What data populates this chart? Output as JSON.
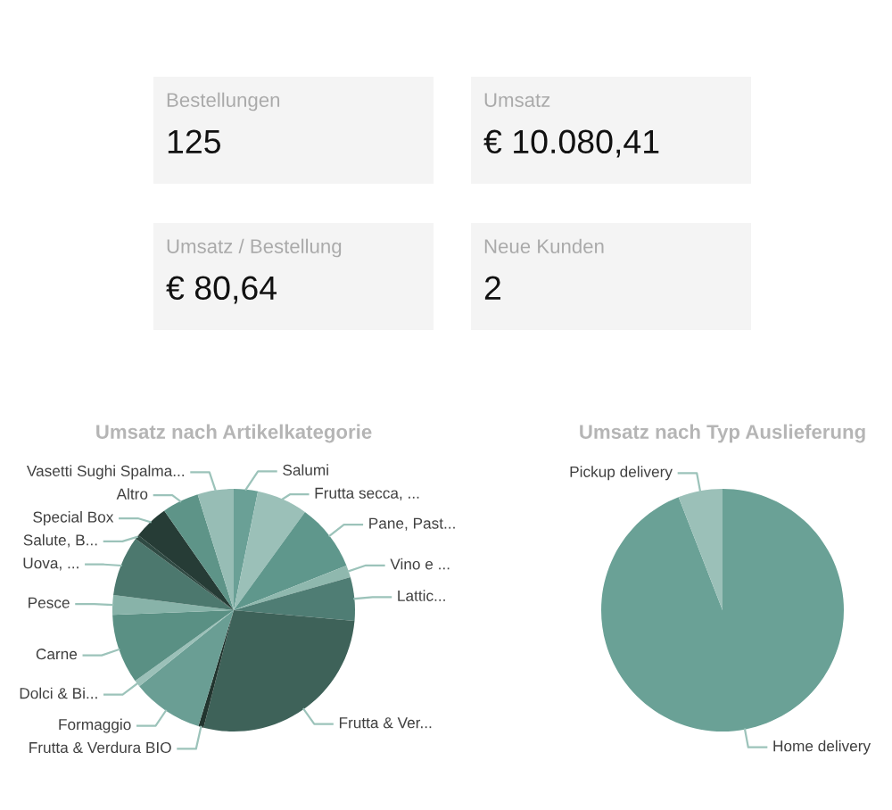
{
  "chart_data": [
    {
      "type": "other",
      "annotations": [
        "Bestellungen",
        "125",
        "Umsatz",
        "€ 10.080,41",
        "Umsatz / Bestellung",
        "€ 80,64",
        "Neue Kunden",
        "2"
      ]
    },
    {
      "type": "pie",
      "title": "Umsatz nach Artikelkategorie",
      "categories": [
        "Salumi",
        "Frutta secca, ...",
        "Pane, Past...",
        "Vino e ...",
        "Lattic...",
        "Frutta & Ver...",
        "Frutta & Verdura BIO",
        "Formaggio",
        "Dolci & Bi...",
        "Carne",
        "Pesce",
        "Uova, ...",
        "Salute, B...",
        "Special Box",
        "Altro",
        "Vasetti Sughi Spalma..."
      ],
      "values": [
        3.2,
        6.8,
        9.0,
        1.6,
        5.8,
        27.6,
        0.7,
        9.5,
        0.9,
        9.3,
        2.6,
        8.0,
        0.6,
        4.7,
        4.9,
        4.8
      ],
      "colors": [
        "#6aa096",
        "#9bc0b8",
        "#5f978c",
        "#8fb8ae",
        "#4f7d74",
        "#3e6259",
        "#22352f",
        "#6a9e94",
        "#9bc0b8",
        "#5a9084",
        "#88b3a9",
        "#4c786e",
        "#2f4a43",
        "#263c36",
        "#5e9488",
        "#97bdb5"
      ]
    },
    {
      "type": "pie",
      "title": "Umsatz nach Typ Auslieferung",
      "categories": [
        "Home delivery",
        "Pickup delivery"
      ],
      "values": [
        94.1,
        5.9
      ],
      "colors": [
        "#6aa196",
        "#9bc0b8"
      ]
    }
  ]
}
